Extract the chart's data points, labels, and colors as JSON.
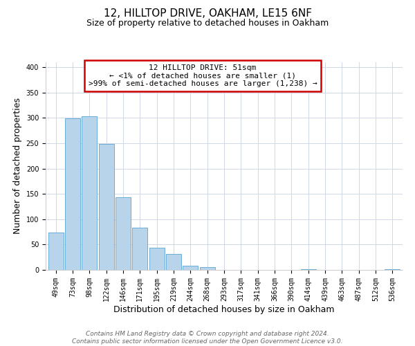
{
  "title": "12, HILLTOP DRIVE, OAKHAM, LE15 6NF",
  "subtitle": "Size of property relative to detached houses in Oakham",
  "xlabel": "Distribution of detached houses by size in Oakham",
  "ylabel": "Number of detached properties",
  "bar_labels": [
    "49sqm",
    "73sqm",
    "98sqm",
    "122sqm",
    "146sqm",
    "171sqm",
    "195sqm",
    "219sqm",
    "244sqm",
    "268sqm",
    "293sqm",
    "317sqm",
    "341sqm",
    "366sqm",
    "390sqm",
    "414sqm",
    "439sqm",
    "463sqm",
    "487sqm",
    "512sqm",
    "536sqm"
  ],
  "bar_heights": [
    74,
    299,
    304,
    249,
    144,
    83,
    44,
    31,
    8,
    5,
    0,
    0,
    0,
    0,
    0,
    1,
    0,
    0,
    0,
    0,
    1
  ],
  "bar_color": "#b8d4ea",
  "bar_edge_color": "#6aaed6",
  "ylim": [
    0,
    410
  ],
  "yticks": [
    0,
    50,
    100,
    150,
    200,
    250,
    300,
    350,
    400
  ],
  "annotation_line1": "12 HILLTOP DRIVE: 51sqm",
  "annotation_line2": "← <1% of detached houses are smaller (1)",
  "annotation_line3": ">99% of semi-detached houses are larger (1,238) →",
  "annotation_box_color": "#ffffff",
  "annotation_box_edge_color": "#cc0000",
  "footer_line1": "Contains HM Land Registry data © Crown copyright and database right 2024.",
  "footer_line2": "Contains public sector information licensed under the Open Government Licence v3.0.",
  "bg_color": "#ffffff",
  "grid_color": "#d0d8e8",
  "title_fontsize": 11,
  "subtitle_fontsize": 9,
  "axis_label_fontsize": 9,
  "tick_fontsize": 7,
  "annotation_fontsize": 8,
  "footer_fontsize": 6.5
}
